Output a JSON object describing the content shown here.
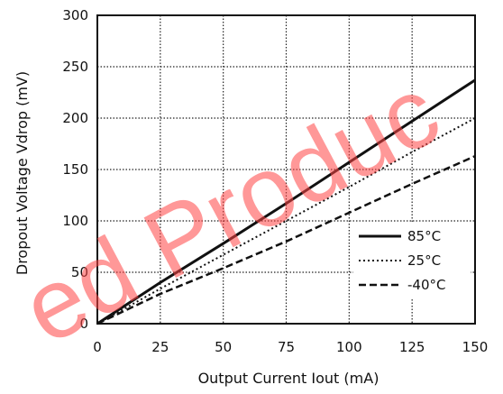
{
  "chart_data": {
    "type": "line",
    "xlabel": "Output Current Iout (mA)",
    "ylabel": "Dropout Voltage Vdrop (mV)",
    "xlim": [
      0,
      150
    ],
    "ylim": [
      0,
      300
    ],
    "x_ticks": [
      "0",
      "25",
      "50",
      "75",
      "100",
      "125",
      "150"
    ],
    "y_ticks": [
      "0",
      "50",
      "100",
      "150",
      "200",
      "250",
      "300"
    ],
    "grid": true,
    "legend_placement": "bottom-right",
    "series": [
      {
        "name": "85°C",
        "style": "solid",
        "x": [
          0,
          25,
          50,
          75,
          100,
          125,
          150
        ],
        "y": [
          0,
          40,
          78,
          117,
          157,
          197,
          237
        ]
      },
      {
        "name": "25°C",
        "style": "dotted",
        "x": [
          0,
          25,
          50,
          75,
          100,
          125,
          150
        ],
        "y": [
          0,
          34,
          67,
          100,
          133,
          167,
          200
        ]
      },
      {
        "name": "-40°C",
        "style": "dashed",
        "x": [
          0,
          25,
          50,
          75,
          100,
          125,
          150
        ],
        "y": [
          0,
          29,
          54,
          80,
          108,
          136,
          163
        ]
      }
    ]
  },
  "watermark": "ed Produc",
  "colors": {
    "lines": "#111111",
    "grid": "#222222",
    "watermark": "#ff4444"
  }
}
